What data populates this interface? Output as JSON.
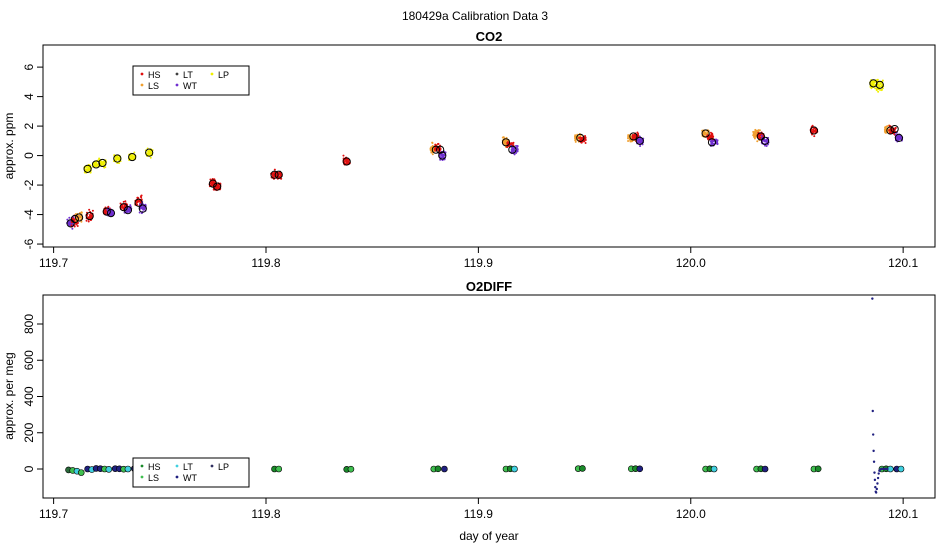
{
  "page_title": "180429a   Calibration Data 3",
  "xlabel": "day of year",
  "chart_data": [
    {
      "type": "scatter",
      "title": "CO2",
      "ylabel": "approx. ppm",
      "xlim": [
        119.695,
        120.115
      ],
      "ylim": [
        -6.2,
        7.5
      ],
      "xticks": [
        119.7,
        119.8,
        119.9,
        120.0,
        120.1
      ],
      "xtick_labels": [
        "119.7",
        "119.8",
        "119.9",
        "120.0",
        "120.1"
      ],
      "yticks": [
        -6,
        -4,
        -2,
        0,
        2,
        4,
        6
      ],
      "ytick_labels": [
        "-6",
        "-4",
        "-2",
        "0",
        "2",
        "4",
        "6"
      ],
      "legend": {
        "placement": "top-left",
        "entries": [
          {
            "name": "HS",
            "color": "#e01010"
          },
          {
            "name": "LS",
            "color": "#f0a030"
          },
          {
            "name": "LT",
            "color": "#404040"
          },
          {
            "name": "WT",
            "color": "#7030d0"
          },
          {
            "name": "LP",
            "color": "#f0f000"
          }
        ]
      },
      "clusters": [
        {
          "series": "LT",
          "x": 119.708,
          "mean": -4.6,
          "spread": 0.6,
          "color": "#7030d0"
        },
        {
          "series": "HS",
          "x": 119.71,
          "mean": -4.4,
          "spread": 0.6,
          "color": "#e01010"
        },
        {
          "series": "LS",
          "x": 119.712,
          "mean": -4.2,
          "spread": 0.6,
          "color": "#f0a030"
        },
        {
          "series": "LP",
          "x": 119.716,
          "mean": -0.9,
          "spread": 0.5,
          "color": "#f0f000"
        },
        {
          "series": "HS",
          "x": 119.717,
          "mean": -4.1,
          "spread": 0.6,
          "color": "#e01010"
        },
        {
          "series": "LP",
          "x": 119.72,
          "mean": -0.6,
          "spread": 0.5,
          "color": "#f0f000"
        },
        {
          "series": "LP",
          "x": 119.723,
          "mean": -0.5,
          "spread": 0.5,
          "color": "#f0f000"
        },
        {
          "series": "HS",
          "x": 119.725,
          "mean": -3.8,
          "spread": 0.6,
          "color": "#e01010"
        },
        {
          "series": "LT",
          "x": 119.727,
          "mean": -3.9,
          "spread": 0.6,
          "color": "#7030d0"
        },
        {
          "series": "LP",
          "x": 119.73,
          "mean": -0.2,
          "spread": 0.5,
          "color": "#f0f000"
        },
        {
          "series": "HS",
          "x": 119.733,
          "mean": -3.4,
          "spread": 0.6,
          "color": "#e01010"
        },
        {
          "series": "LT",
          "x": 119.735,
          "mean": -3.7,
          "spread": 0.6,
          "color": "#7030d0"
        },
        {
          "series": "LP",
          "x": 119.737,
          "mean": -0.1,
          "spread": 0.5,
          "color": "#f0f000"
        },
        {
          "series": "HS",
          "x": 119.74,
          "mean": -3.1,
          "spread": 0.6,
          "color": "#e01010"
        },
        {
          "series": "LT",
          "x": 119.742,
          "mean": -3.5,
          "spread": 0.6,
          "color": "#7030d0"
        },
        {
          "series": "LP",
          "x": 119.745,
          "mean": 0.2,
          "spread": 0.5,
          "color": "#f0f000"
        },
        {
          "series": "HS",
          "x": 119.775,
          "mean": -1.9,
          "spread": 0.6,
          "color": "#e01010"
        },
        {
          "series": "HS",
          "x": 119.777,
          "mean": -2.1,
          "spread": 0.6,
          "color": "#e01010"
        },
        {
          "series": "HS",
          "x": 119.804,
          "mean": -1.3,
          "spread": 0.5,
          "color": "#e01010"
        },
        {
          "series": "HS",
          "x": 119.806,
          "mean": -1.3,
          "spread": 0.5,
          "color": "#e01010"
        },
        {
          "series": "HS",
          "x": 119.838,
          "mean": -0.4,
          "spread": 0.6,
          "color": "#e01010"
        },
        {
          "series": "LS",
          "x": 119.879,
          "mean": 0.4,
          "spread": 0.6,
          "color": "#f0a030"
        },
        {
          "series": "HS",
          "x": 119.881,
          "mean": 0.5,
          "spread": 0.6,
          "color": "#e01010"
        },
        {
          "series": "LT",
          "x": 119.883,
          "mean": 0.0,
          "spread": 0.6,
          "color": "#7030d0"
        },
        {
          "series": "LS",
          "x": 119.913,
          "mean": 0.9,
          "spread": 0.5,
          "color": "#f0a030"
        },
        {
          "series": "HS",
          "x": 119.915,
          "mean": 0.7,
          "spread": 0.5,
          "color": "#e01010"
        },
        {
          "series": "LT",
          "x": 119.917,
          "mean": 0.4,
          "spread": 0.5,
          "color": "#7030d0"
        },
        {
          "series": "LS",
          "x": 119.947,
          "mean": 1.2,
          "spread": 0.5,
          "color": "#f0a030"
        },
        {
          "series": "HS",
          "x": 119.949,
          "mean": 1.1,
          "spread": 0.5,
          "color": "#e01010"
        },
        {
          "series": "LS",
          "x": 119.972,
          "mean": 1.2,
          "spread": 0.5,
          "color": "#f0a030"
        },
        {
          "series": "HS",
          "x": 119.974,
          "mean": 1.3,
          "spread": 0.5,
          "color": "#e01010"
        },
        {
          "series": "LT",
          "x": 119.976,
          "mean": 1.0,
          "spread": 0.5,
          "color": "#7030d0"
        },
        {
          "series": "LS",
          "x": 120.007,
          "mean": 1.5,
          "spread": 0.6,
          "color": "#f0a030"
        },
        {
          "series": "HS",
          "x": 120.009,
          "mean": 1.3,
          "spread": 0.6,
          "color": "#e01010"
        },
        {
          "series": "LT",
          "x": 120.011,
          "mean": 0.9,
          "spread": 0.6,
          "color": "#7030d0"
        },
        {
          "series": "LS",
          "x": 120.031,
          "mean": 1.4,
          "spread": 0.6,
          "color": "#f0a030"
        },
        {
          "series": "HS",
          "x": 120.033,
          "mean": 1.3,
          "spread": 0.6,
          "color": "#e01010"
        },
        {
          "series": "LT",
          "x": 120.035,
          "mean": 1.0,
          "spread": 0.6,
          "color": "#7030d0"
        },
        {
          "series": "HS",
          "x": 120.058,
          "mean": 1.7,
          "spread": 0.6,
          "color": "#e01010"
        },
        {
          "series": "LP",
          "x": 120.086,
          "mean": 4.9,
          "spread": 0.7,
          "color": "#f0f000"
        },
        {
          "series": "LP",
          "x": 120.089,
          "mean": 4.8,
          "spread": 0.7,
          "color": "#f0f000"
        },
        {
          "series": "LS",
          "x": 120.093,
          "mean": 1.7,
          "spread": 0.5,
          "color": "#f0a030"
        },
        {
          "series": "HS",
          "x": 120.095,
          "mean": 1.7,
          "spread": 0.5,
          "color": "#e01010"
        },
        {
          "series": "LT",
          "x": 120.098,
          "mean": 1.2,
          "spread": 0.5,
          "color": "#7030d0"
        }
      ],
      "means": [
        {
          "x": 119.708,
          "y": -4.6
        },
        {
          "x": 119.71,
          "y": -4.3
        },
        {
          "x": 119.712,
          "y": -4.2
        },
        {
          "x": 119.716,
          "y": -0.9
        },
        {
          "x": 119.717,
          "y": -4.1
        },
        {
          "x": 119.72,
          "y": -0.6
        },
        {
          "x": 119.723,
          "y": -0.5
        },
        {
          "x": 119.725,
          "y": -3.8
        },
        {
          "x": 119.727,
          "y": -3.9
        },
        {
          "x": 119.73,
          "y": -0.2
        },
        {
          "x": 119.733,
          "y": -3.5
        },
        {
          "x": 119.735,
          "y": -3.7
        },
        {
          "x": 119.737,
          "y": -0.1
        },
        {
          "x": 119.74,
          "y": -3.2
        },
        {
          "x": 119.742,
          "y": -3.6
        },
        {
          "x": 119.745,
          "y": 0.2
        },
        {
          "x": 119.775,
          "y": -1.9
        },
        {
          "x": 119.777,
          "y": -2.1
        },
        {
          "x": 119.804,
          "y": -1.3
        },
        {
          "x": 119.806,
          "y": -1.3
        },
        {
          "x": 119.838,
          "y": -0.4
        },
        {
          "x": 119.88,
          "y": 0.4
        },
        {
          "x": 119.882,
          "y": 0.4
        },
        {
          "x": 119.883,
          "y": 0.0
        },
        {
          "x": 119.913,
          "y": 0.9
        },
        {
          "x": 119.916,
          "y": 0.4
        },
        {
          "x": 119.948,
          "y": 1.2
        },
        {
          "x": 119.973,
          "y": 1.3
        },
        {
          "x": 119.976,
          "y": 1.0
        },
        {
          "x": 120.007,
          "y": 1.5
        },
        {
          "x": 120.01,
          "y": 0.9
        },
        {
          "x": 120.033,
          "y": 1.3
        },
        {
          "x": 120.035,
          "y": 1.0
        },
        {
          "x": 120.058,
          "y": 1.7
        },
        {
          "x": 120.086,
          "y": 4.9
        },
        {
          "x": 120.089,
          "y": 4.8
        },
        {
          "x": 120.094,
          "y": 1.7
        },
        {
          "x": 120.096,
          "y": 1.8
        },
        {
          "x": 120.098,
          "y": 1.2
        }
      ]
    },
    {
      "type": "scatter",
      "title": "O2DIFF",
      "ylabel": "approx. per meg",
      "xlim": [
        119.695,
        120.115
      ],
      "ylim": [
        -160,
        960
      ],
      "xticks": [
        119.7,
        119.8,
        119.9,
        120.0,
        120.1
      ],
      "xtick_labels": [
        "119.7",
        "119.8",
        "119.9",
        "120.0",
        "120.1"
      ],
      "yticks": [
        0,
        200,
        400,
        600,
        800
      ],
      "ytick_labels": [
        "0",
        "200",
        "400",
        "600",
        "800"
      ],
      "legend": {
        "placement": "bottom-left",
        "entries": [
          {
            "name": "HS",
            "color": "#1a8a2a"
          },
          {
            "name": "LS",
            "color": "#40c050"
          },
          {
            "name": "LT",
            "color": "#40d0e0"
          },
          {
            "name": "WT",
            "color": "#202080"
          },
          {
            "name": "LP",
            "color": "#303060"
          }
        ]
      },
      "points": [
        {
          "x": 119.707,
          "y": -5,
          "color": "#2a6a3a"
        },
        {
          "x": 119.709,
          "y": -8,
          "color": "#40c050"
        },
        {
          "x": 119.711,
          "y": -12,
          "color": "#40d0e0"
        },
        {
          "x": 119.713,
          "y": -20,
          "color": "#40c050"
        },
        {
          "x": 119.716,
          "y": 0,
          "color": "#202080"
        },
        {
          "x": 119.718,
          "y": -3,
          "color": "#40d0e0"
        },
        {
          "x": 119.72,
          "y": 3,
          "color": "#202080"
        },
        {
          "x": 119.722,
          "y": 2,
          "color": "#202080"
        },
        {
          "x": 119.724,
          "y": 0,
          "color": "#40c050"
        },
        {
          "x": 119.726,
          "y": -2,
          "color": "#40d0e0"
        },
        {
          "x": 119.729,
          "y": 2,
          "color": "#202080"
        },
        {
          "x": 119.731,
          "y": 1,
          "color": "#202080"
        },
        {
          "x": 119.733,
          "y": -1,
          "color": "#40c050"
        },
        {
          "x": 119.735,
          "y": 0,
          "color": "#40d0e0"
        },
        {
          "x": 119.738,
          "y": 2,
          "color": "#202080"
        },
        {
          "x": 119.74,
          "y": 0,
          "color": "#40c050"
        },
        {
          "x": 119.742,
          "y": 1,
          "color": "#40d0e0"
        },
        {
          "x": 119.745,
          "y": 2,
          "color": "#202080"
        },
        {
          "x": 119.775,
          "y": 0,
          "color": "#40c050"
        },
        {
          "x": 119.777,
          "y": -1,
          "color": "#1a8a2a"
        },
        {
          "x": 119.804,
          "y": 0,
          "color": "#1a8a2a"
        },
        {
          "x": 119.806,
          "y": 0,
          "color": "#40c050"
        },
        {
          "x": 119.838,
          "y": -2,
          "color": "#1a8a2a"
        },
        {
          "x": 119.84,
          "y": -1,
          "color": "#40c050"
        },
        {
          "x": 119.879,
          "y": 0,
          "color": "#40c050"
        },
        {
          "x": 119.881,
          "y": 1,
          "color": "#1a8a2a"
        },
        {
          "x": 119.884,
          "y": 0,
          "color": "#202080"
        },
        {
          "x": 119.913,
          "y": 0,
          "color": "#40c050"
        },
        {
          "x": 119.915,
          "y": 1,
          "color": "#1a8a2a"
        },
        {
          "x": 119.917,
          "y": 0,
          "color": "#40d0e0"
        },
        {
          "x": 119.947,
          "y": 2,
          "color": "#40c050"
        },
        {
          "x": 119.949,
          "y": 3,
          "color": "#1a8a2a"
        },
        {
          "x": 119.972,
          "y": 1,
          "color": "#40c050"
        },
        {
          "x": 119.974,
          "y": 2,
          "color": "#1a8a2a"
        },
        {
          "x": 119.976,
          "y": 1,
          "color": "#202080"
        },
        {
          "x": 120.007,
          "y": 0,
          "color": "#40c050"
        },
        {
          "x": 120.009,
          "y": 1,
          "color": "#1a8a2a"
        },
        {
          "x": 120.011,
          "y": 0,
          "color": "#40d0e0"
        },
        {
          "x": 120.031,
          "y": 0,
          "color": "#40c050"
        },
        {
          "x": 120.033,
          "y": 1,
          "color": "#1a8a2a"
        },
        {
          "x": 120.035,
          "y": 0,
          "color": "#202080"
        },
        {
          "x": 120.058,
          "y": 0,
          "color": "#40c050"
        },
        {
          "x": 120.06,
          "y": 1,
          "color": "#1a8a2a"
        },
        {
          "x": 120.09,
          "y": 0,
          "color": "#40c050"
        },
        {
          "x": 120.092,
          "y": 1,
          "color": "#1a8a2a"
        },
        {
          "x": 120.094,
          "y": 0,
          "color": "#40d0e0"
        },
        {
          "x": 120.097,
          "y": 0,
          "color": "#202080"
        },
        {
          "x": 120.099,
          "y": 0,
          "color": "#40d0e0"
        }
      ],
      "spike": {
        "color": "#202080",
        "points": [
          {
            "x": 120.0855,
            "y": 940
          },
          {
            "x": 120.0857,
            "y": 320
          },
          {
            "x": 120.0859,
            "y": 190
          },
          {
            "x": 120.0861,
            "y": 100
          },
          {
            "x": 120.0863,
            "y": 40
          },
          {
            "x": 120.0865,
            "y": -20
          },
          {
            "x": 120.0867,
            "y": -60
          },
          {
            "x": 120.0869,
            "y": -100
          },
          {
            "x": 120.0871,
            "y": -125
          },
          {
            "x": 120.0873,
            "y": -130
          },
          {
            "x": 120.0876,
            "y": -110
          },
          {
            "x": 120.0879,
            "y": -80
          },
          {
            "x": 120.0882,
            "y": -50
          },
          {
            "x": 120.0885,
            "y": -25
          },
          {
            "x": 120.0888,
            "y": -10
          },
          {
            "x": 120.0892,
            "y": -3
          },
          {
            "x": 120.0897,
            "y": 0
          },
          {
            "x": 120.0903,
            "y": 1
          },
          {
            "x": 120.091,
            "y": 0
          },
          {
            "x": 120.0918,
            "y": 1
          },
          {
            "x": 120.0926,
            "y": 0
          }
        ]
      }
    }
  ]
}
